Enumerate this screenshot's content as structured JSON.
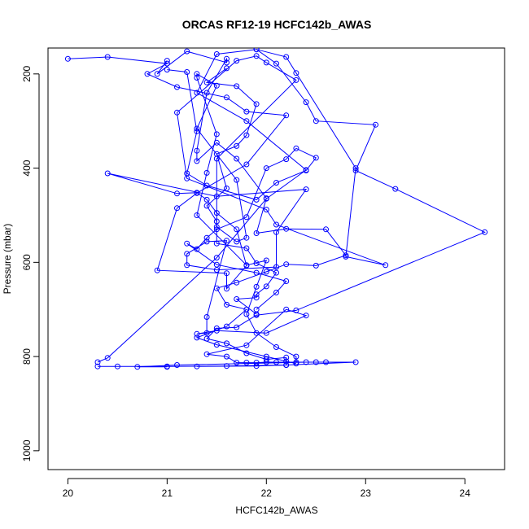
{
  "chart_data": {
    "type": "line",
    "title": "ORCAS RF12-19 HCFC142b_AWAS",
    "xlabel": "HCFC142b_AWAS",
    "ylabel": "Pressure (mbar)",
    "xlim": [
      19.8,
      24.4
    ],
    "ylim": [
      1040,
      145
    ],
    "y_reversed": true,
    "x_ticks": [
      20,
      21,
      22,
      23,
      24
    ],
    "y_ticks": [
      200,
      400,
      600,
      800,
      1000
    ],
    "grid": false,
    "color": "#0000ff",
    "markers": "open-circle",
    "series": [
      {
        "values": [
          [
            20.3,
            812
          ],
          [
            20.4,
            803
          ],
          [
            21.5,
            590
          ],
          [
            22.0,
            465
          ],
          [
            22.4,
            404
          ],
          [
            21.8,
            300
          ],
          [
            21.3,
            240
          ],
          [
            21.5,
            158
          ],
          [
            21.9,
            148
          ],
          [
            22.2,
            164
          ],
          [
            22.3,
            198
          ],
          [
            22.9,
            400
          ],
          [
            22.8,
            588
          ],
          [
            23.2,
            606
          ],
          [
            22.1,
            520
          ],
          [
            22.0,
            488
          ],
          [
            21.2,
            422
          ],
          [
            21.1,
            282
          ],
          [
            21.7,
            172
          ],
          [
            21.9,
            162
          ],
          [
            22.0,
            176
          ],
          [
            22.3,
            213
          ],
          [
            21.5,
            380
          ],
          [
            21.5,
            525
          ],
          [
            21.7,
            556
          ],
          [
            21.8,
            548
          ],
          [
            21.7,
            425
          ],
          [
            21.3,
            316
          ],
          [
            21.5,
            225
          ],
          [
            21.3,
            200
          ],
          [
            21.3,
            208
          ],
          [
            21.5,
            328
          ],
          [
            21.4,
            410
          ],
          [
            21.3,
            500
          ],
          [
            21.8,
            606
          ],
          [
            22.0,
            596
          ],
          [
            21.9,
            652
          ],
          [
            21.8,
            710
          ],
          [
            21.9,
            750
          ],
          [
            22.1,
            780
          ],
          [
            22.3,
            800
          ],
          [
            22.3,
            812
          ],
          [
            22.5,
            812
          ],
          [
            22.6,
            812
          ],
          [
            22.9,
            812
          ],
          [
            22.2,
            818
          ],
          [
            21.6,
            820
          ],
          [
            21.0,
            821
          ],
          [
            20.5,
            821
          ],
          [
            20.3,
            821
          ]
        ]
      },
      {
        "values": [
          [
            20.0,
            168
          ],
          [
            20.4,
            164
          ],
          [
            21.0,
            178
          ],
          [
            20.8,
            200
          ],
          [
            21.1,
            228
          ],
          [
            21.6,
            250
          ],
          [
            21.8,
            280
          ],
          [
            22.2,
            288
          ],
          [
            21.8,
            392
          ],
          [
            21.3,
            453
          ],
          [
            21.1,
            485
          ],
          [
            20.9,
            617
          ],
          [
            21.6,
            623
          ],
          [
            21.6,
            656
          ],
          [
            21.8,
            607
          ],
          [
            21.7,
            530
          ],
          [
            21.5,
            495
          ],
          [
            21.4,
            467
          ],
          [
            21.3,
            452
          ],
          [
            21.1,
            454
          ],
          [
            20.4,
            411
          ],
          [
            21.5,
            460
          ],
          [
            22.4,
            445
          ],
          [
            22.1,
            536
          ],
          [
            22.1,
            610
          ],
          [
            21.5,
            616
          ],
          [
            21.2,
            606
          ],
          [
            21.2,
            582
          ],
          [
            21.4,
            556
          ],
          [
            21.6,
            554
          ],
          [
            21.4,
            716
          ],
          [
            21.4,
            750
          ],
          [
            21.3,
            752
          ],
          [
            21.5,
            745
          ],
          [
            22.0,
            750
          ],
          [
            22.4,
            713
          ],
          [
            22.2,
            700
          ],
          [
            21.8,
            776
          ],
          [
            21.4,
            795
          ],
          [
            21.6,
            800
          ],
          [
            21.7,
            813
          ],
          [
            21.8,
            813
          ],
          [
            21.9,
            813
          ],
          [
            22.0,
            812
          ],
          [
            22.1,
            812
          ],
          [
            22.4,
            812
          ],
          [
            21.1,
            818
          ],
          [
            20.7,
            822
          ],
          [
            21.0,
            822
          ]
        ]
      },
      {
        "values": [
          [
            21.0,
            172
          ],
          [
            20.9,
            200
          ],
          [
            21.2,
            152
          ],
          [
            21.6,
            176
          ],
          [
            21.6,
            168
          ],
          [
            21.4,
            240
          ],
          [
            21.3,
            363
          ],
          [
            21.3,
            385
          ],
          [
            21.5,
            346
          ],
          [
            21.7,
            380
          ],
          [
            22.0,
            464
          ],
          [
            21.9,
            538
          ],
          [
            22.2,
            529
          ],
          [
            22.6,
            530
          ],
          [
            22.8,
            585
          ],
          [
            22.5,
            607
          ],
          [
            22.2,
            604
          ],
          [
            22.0,
            620
          ],
          [
            21.7,
            643
          ],
          [
            21.5,
            655
          ],
          [
            21.6,
            690
          ],
          [
            21.8,
            700
          ],
          [
            21.6,
            736
          ],
          [
            21.3,
            760
          ],
          [
            21.5,
            775
          ],
          [
            22.0,
            800
          ],
          [
            22.2,
            810
          ],
          [
            22.3,
            815
          ]
        ]
      },
      {
        "values": [
          [
            21.9,
            148
          ],
          [
            22.1,
            178
          ],
          [
            22.4,
            260
          ],
          [
            22.5,
            300
          ],
          [
            23.1,
            308
          ],
          [
            22.9,
            405
          ],
          [
            23.3,
            444
          ],
          [
            24.2,
            536
          ],
          [
            22.3,
            702
          ],
          [
            21.9,
            712
          ],
          [
            21.7,
            738
          ],
          [
            21.5,
            740
          ],
          [
            21.4,
            762
          ],
          [
            21.6,
            772
          ],
          [
            21.8,
            793
          ],
          [
            22.0,
            806
          ],
          [
            22.2,
            802
          ],
          [
            22.2,
            818
          ],
          [
            21.9,
            820
          ],
          [
            21.3,
            821
          ]
        ]
      },
      {
        "values": [
          [
            21.6,
            188
          ],
          [
            21.4,
            218
          ],
          [
            21.7,
            226
          ],
          [
            21.9,
            264
          ],
          [
            21.8,
            330
          ],
          [
            21.7,
            353
          ],
          [
            21.5,
            370
          ],
          [
            21.6,
            443
          ],
          [
            21.4,
            480
          ],
          [
            21.5,
            513
          ],
          [
            21.5,
            560
          ],
          [
            21.8,
            570
          ],
          [
            21.9,
            602
          ],
          [
            22.1,
            622
          ],
          [
            22.0,
            651
          ],
          [
            21.9,
            668
          ],
          [
            21.9,
            675
          ],
          [
            21.7,
            678
          ],
          [
            21.9,
            710
          ]
        ]
      },
      {
        "values": [
          [
            21.0,
            191
          ],
          [
            21.2,
            196
          ],
          [
            21.3,
            322
          ],
          [
            21.2,
            411
          ],
          [
            21.4,
            437
          ],
          [
            21.9,
            467
          ],
          [
            22.1,
            431
          ],
          [
            22.4,
            405
          ],
          [
            22.5,
            378
          ],
          [
            22.3,
            358
          ],
          [
            22.2,
            381
          ],
          [
            22.0,
            400
          ],
          [
            21.8,
            504
          ],
          [
            21.5,
            530
          ],
          [
            21.4,
            548
          ],
          [
            21.3,
            572
          ],
          [
            21.2,
            560
          ],
          [
            21.5,
            605
          ],
          [
            21.9,
            622
          ],
          [
            22.2,
            640
          ],
          [
            22.1,
            664
          ],
          [
            21.9,
            700
          ]
        ]
      }
    ]
  }
}
